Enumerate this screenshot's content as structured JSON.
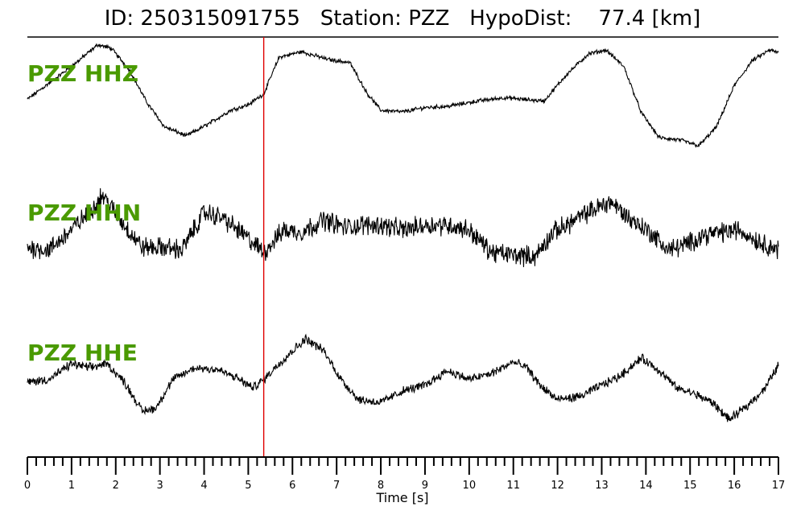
{
  "title": "ID: 250315091755   Station: PZZ   HypoDist:    77.4 [km]",
  "colors": {
    "trace": "#000000",
    "label": "#4a9a00",
    "pick": "#e00000",
    "axis": "#000000"
  },
  "chart_data": {
    "type": "line",
    "title": "ID: 250315091755   Station: PZZ   HypoDist:    77.4 [km]",
    "xlabel": "Time [s]",
    "xlim": [
      0,
      17
    ],
    "x_major_ticks": [
      0,
      1,
      2,
      3,
      4,
      5,
      6,
      7,
      8,
      9,
      10,
      11,
      12,
      13,
      14,
      15,
      16,
      17
    ],
    "x_tick_labels": [
      "0",
      "1",
      "2",
      "3",
      "4",
      "5",
      "6",
      "7",
      "8",
      "9",
      "10",
      "11",
      "12",
      "13",
      "14",
      "15",
      "16",
      "17"
    ],
    "minor_tick_step": 0.2,
    "pick_time": 5.35,
    "amplitude_units": "normalized (unlabeled)",
    "series": [
      {
        "name": "PZZ HHZ",
        "noise": 0.03,
        "envelope": [
          [
            0,
            -0.05
          ],
          [
            0.5,
            0.25
          ],
          [
            1,
            0.55
          ],
          [
            1.6,
            0.95
          ],
          [
            1.9,
            0.88
          ],
          [
            2.3,
            0.5
          ],
          [
            2.7,
            -0.1
          ],
          [
            3.1,
            -0.55
          ],
          [
            3.6,
            -0.72
          ],
          [
            4.1,
            -0.5
          ],
          [
            4.6,
            -0.25
          ],
          [
            5.0,
            -0.15
          ],
          [
            5.35,
            0.05
          ],
          [
            5.7,
            0.72
          ],
          [
            6.2,
            0.82
          ],
          [
            6.8,
            0.68
          ],
          [
            7.3,
            0.62
          ],
          [
            7.7,
            0.05
          ],
          [
            8.0,
            -0.25
          ],
          [
            8.5,
            -0.28
          ],
          [
            9.0,
            -0.2
          ],
          [
            9.5,
            -0.18
          ],
          [
            10.2,
            -0.08
          ],
          [
            10.8,
            -0.02
          ],
          [
            11.2,
            -0.05
          ],
          [
            11.7,
            -0.08
          ],
          [
            12.2,
            0.4
          ],
          [
            12.7,
            0.78
          ],
          [
            13.1,
            0.85
          ],
          [
            13.5,
            0.55
          ],
          [
            13.9,
            -0.3
          ],
          [
            14.3,
            -0.75
          ],
          [
            14.8,
            -0.8
          ],
          [
            15.2,
            -0.9
          ],
          [
            15.6,
            -0.55
          ],
          [
            16.0,
            0.2
          ],
          [
            16.4,
            0.65
          ],
          [
            16.8,
            0.85
          ],
          [
            17.0,
            0.8
          ]
        ]
      },
      {
        "name": "PZZ HHN",
        "noise": 0.16,
        "envelope": [
          [
            0,
            -0.2
          ],
          [
            0.5,
            -0.25
          ],
          [
            1,
            0.15
          ],
          [
            1.5,
            0.6
          ],
          [
            1.7,
            0.85
          ],
          [
            2.1,
            0.35
          ],
          [
            2.6,
            -0.2
          ],
          [
            3.1,
            -0.2
          ],
          [
            3.5,
            -0.25
          ],
          [
            4.0,
            0.5
          ],
          [
            4.4,
            0.4
          ],
          [
            4.9,
            0.05
          ],
          [
            5.35,
            -0.3
          ],
          [
            5.8,
            0.15
          ],
          [
            6.2,
            0.1
          ],
          [
            6.7,
            0.35
          ],
          [
            7.2,
            0.2
          ],
          [
            7.6,
            0.25
          ],
          [
            8.0,
            0.25
          ],
          [
            8.5,
            0.15
          ],
          [
            9.0,
            0.25
          ],
          [
            9.5,
            0.25
          ],
          [
            10.0,
            0.15
          ],
          [
            10.5,
            -0.3
          ],
          [
            11.0,
            -0.35
          ],
          [
            11.5,
            -0.38
          ],
          [
            11.9,
            0.1
          ],
          [
            12.4,
            0.35
          ],
          [
            12.8,
            0.55
          ],
          [
            13.2,
            0.72
          ],
          [
            13.6,
            0.4
          ],
          [
            14.1,
            0.1
          ],
          [
            14.5,
            -0.25
          ],
          [
            14.9,
            -0.15
          ],
          [
            15.3,
            0.05
          ],
          [
            15.7,
            0.1
          ],
          [
            16.1,
            0.15
          ],
          [
            16.6,
            -0.1
          ],
          [
            17.0,
            -0.25
          ]
        ]
      },
      {
        "name": "PZZ HHE",
        "noise": 0.06,
        "envelope": [
          [
            0,
            0.0
          ],
          [
            0.5,
            0.05
          ],
          [
            1,
            0.32
          ],
          [
            1.4,
            0.25
          ],
          [
            1.8,
            0.32
          ],
          [
            2.2,
            0.0
          ],
          [
            2.6,
            -0.5
          ],
          [
            2.9,
            -0.45
          ],
          [
            3.3,
            0.05
          ],
          [
            3.8,
            0.25
          ],
          [
            4.3,
            0.22
          ],
          [
            4.8,
            0.05
          ],
          [
            5.1,
            -0.1
          ],
          [
            5.35,
            0.05
          ],
          [
            5.8,
            0.4
          ],
          [
            6.3,
            0.75
          ],
          [
            6.7,
            0.55
          ],
          [
            7.1,
            0.05
          ],
          [
            7.5,
            -0.3
          ],
          [
            8.0,
            -0.35
          ],
          [
            8.5,
            -0.15
          ],
          [
            9.0,
            -0.05
          ],
          [
            9.5,
            0.2
          ],
          [
            10.0,
            0.05
          ],
          [
            10.5,
            0.15
          ],
          [
            11.0,
            0.35
          ],
          [
            11.3,
            0.25
          ],
          [
            11.6,
            -0.05
          ],
          [
            12.0,
            -0.3
          ],
          [
            12.5,
            -0.25
          ],
          [
            13.0,
            -0.05
          ],
          [
            13.4,
            0.1
          ],
          [
            13.9,
            0.42
          ],
          [
            14.3,
            0.2
          ],
          [
            14.7,
            -0.1
          ],
          [
            15.1,
            -0.2
          ],
          [
            15.5,
            -0.35
          ],
          [
            15.9,
            -0.65
          ],
          [
            16.3,
            -0.4
          ],
          [
            16.7,
            -0.1
          ],
          [
            17.0,
            0.3
          ]
        ]
      }
    ]
  }
}
